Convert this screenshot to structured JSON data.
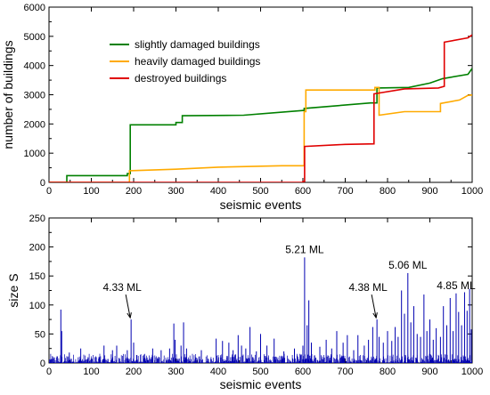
{
  "chart_data": [
    {
      "type": "line",
      "xlabel": "seismic events",
      "ylabel": "number of buildings",
      "xlim": [
        0,
        1000
      ],
      "ylim": [
        0,
        6000
      ],
      "x_ticks": [
        0,
        100,
        200,
        300,
        400,
        500,
        600,
        700,
        800,
        900,
        1000
      ],
      "y_ticks": [
        0,
        1000,
        2000,
        3000,
        4000,
        5000,
        6000
      ],
      "legend_position": "top-left",
      "series": [
        {
          "name": "slightly damaged buildings",
          "color": "#008000",
          "points": [
            [
              0,
              0
            ],
            [
              42,
              0
            ],
            [
              42,
              230
            ],
            [
              185,
              230
            ],
            [
              185,
              300
            ],
            [
              192,
              300
            ],
            [
              192,
              1970
            ],
            [
              300,
              1970
            ],
            [
              300,
              2050
            ],
            [
              315,
              2050
            ],
            [
              315,
              2280
            ],
            [
              460,
              2300
            ],
            [
              600,
              2460
            ],
            [
              603,
              2460
            ],
            [
              603,
              2530
            ],
            [
              760,
              2720
            ],
            [
              775,
              2720
            ],
            [
              775,
              3230
            ],
            [
              850,
              3250
            ],
            [
              900,
              3400
            ],
            [
              930,
              3550
            ],
            [
              990,
              3700
            ],
            [
              1000,
              3900
            ]
          ]
        },
        {
          "name": "heavily damaged buildings",
          "color": "#FFAA00",
          "points": [
            [
              0,
              0
            ],
            [
              190,
              0
            ],
            [
              190,
              400
            ],
            [
              300,
              450
            ],
            [
              400,
              520
            ],
            [
              550,
              570
            ],
            [
              603,
              570
            ],
            [
              603,
              2420
            ],
            [
              607,
              2420
            ],
            [
              607,
              3160
            ],
            [
              770,
              3160
            ],
            [
              770,
              3250
            ],
            [
              780,
              3250
            ],
            [
              780,
              2300
            ],
            [
              840,
              2420
            ],
            [
              925,
              2420
            ],
            [
              925,
              2700
            ],
            [
              970,
              2820
            ],
            [
              990,
              2980
            ],
            [
              1000,
              2990
            ]
          ]
        },
        {
          "name": "destroyed buildings",
          "color": "#E00000",
          "points": [
            [
              0,
              0
            ],
            [
              600,
              0
            ],
            [
              600,
              30
            ],
            [
              604,
              30
            ],
            [
              604,
              1230
            ],
            [
              700,
              1300
            ],
            [
              768,
              1320
            ],
            [
              768,
              3030
            ],
            [
              840,
              3200
            ],
            [
              920,
              3230
            ],
            [
              934,
              3290
            ],
            [
              934,
              4800
            ],
            [
              990,
              4950
            ],
            [
              1000,
              5050
            ]
          ]
        }
      ]
    },
    {
      "type": "bar",
      "xlabel": "seismic events",
      "ylabel": "size S",
      "xlim": [
        0,
        1000
      ],
      "ylim": [
        0,
        250
      ],
      "x_ticks": [
        0,
        100,
        200,
        300,
        400,
        500,
        600,
        700,
        800,
        900,
        1000
      ],
      "y_ticks": [
        0,
        50,
        100,
        150,
        200,
        250
      ],
      "color": "#0000B0",
      "spikes": [
        {
          "x": 28,
          "y": 92
        },
        {
          "x": 30,
          "y": 55
        },
        {
          "x": 48,
          "y": 18
        },
        {
          "x": 75,
          "y": 25
        },
        {
          "x": 130,
          "y": 30
        },
        {
          "x": 150,
          "y": 22
        },
        {
          "x": 160,
          "y": 30
        },
        {
          "x": 185,
          "y": 22
        },
        {
          "x": 194,
          "y": 75
        },
        {
          "x": 200,
          "y": 35
        },
        {
          "x": 245,
          "y": 25
        },
        {
          "x": 265,
          "y": 22
        },
        {
          "x": 285,
          "y": 25
        },
        {
          "x": 295,
          "y": 68
        },
        {
          "x": 298,
          "y": 40
        },
        {
          "x": 312,
          "y": 30
        },
        {
          "x": 318,
          "y": 70
        },
        {
          "x": 325,
          "y": 25
        },
        {
          "x": 360,
          "y": 22
        },
        {
          "x": 395,
          "y": 42
        },
        {
          "x": 410,
          "y": 38
        },
        {
          "x": 425,
          "y": 35
        },
        {
          "x": 435,
          "y": 22
        },
        {
          "x": 447,
          "y": 48
        },
        {
          "x": 455,
          "y": 30
        },
        {
          "x": 465,
          "y": 25
        },
        {
          "x": 475,
          "y": 62
        },
        {
          "x": 490,
          "y": 20
        },
        {
          "x": 500,
          "y": 50
        },
        {
          "x": 515,
          "y": 30
        },
        {
          "x": 532,
          "y": 42
        },
        {
          "x": 555,
          "y": 20
        },
        {
          "x": 580,
          "y": 25
        },
        {
          "x": 600,
          "y": 30
        },
        {
          "x": 604,
          "y": 182
        },
        {
          "x": 610,
          "y": 65
        },
        {
          "x": 614,
          "y": 108
        },
        {
          "x": 620,
          "y": 35
        },
        {
          "x": 640,
          "y": 28
        },
        {
          "x": 655,
          "y": 40
        },
        {
          "x": 668,
          "y": 25
        },
        {
          "x": 680,
          "y": 55
        },
        {
          "x": 695,
          "y": 35
        },
        {
          "x": 705,
          "y": 48
        },
        {
          "x": 720,
          "y": 22
        },
        {
          "x": 730,
          "y": 48
        },
        {
          "x": 745,
          "y": 30
        },
        {
          "x": 755,
          "y": 40
        },
        {
          "x": 765,
          "y": 62
        },
        {
          "x": 775,
          "y": 75
        },
        {
          "x": 780,
          "y": 45
        },
        {
          "x": 790,
          "y": 35
        },
        {
          "x": 800,
          "y": 55
        },
        {
          "x": 810,
          "y": 38
        },
        {
          "x": 818,
          "y": 62
        },
        {
          "x": 825,
          "y": 45
        },
        {
          "x": 833,
          "y": 125
        },
        {
          "x": 840,
          "y": 85
        },
        {
          "x": 848,
          "y": 155
        },
        {
          "x": 855,
          "y": 70
        },
        {
          "x": 862,
          "y": 98
        },
        {
          "x": 870,
          "y": 50
        },
        {
          "x": 878,
          "y": 45
        },
        {
          "x": 886,
          "y": 118
        },
        {
          "x": 893,
          "y": 55
        },
        {
          "x": 900,
          "y": 75
        },
        {
          "x": 908,
          "y": 40
        },
        {
          "x": 915,
          "y": 60
        },
        {
          "x": 925,
          "y": 45
        },
        {
          "x": 932,
          "y": 98
        },
        {
          "x": 940,
          "y": 65
        },
        {
          "x": 948,
          "y": 112
        },
        {
          "x": 955,
          "y": 55
        },
        {
          "x": 962,
          "y": 120
        },
        {
          "x": 968,
          "y": 88
        },
        {
          "x": 975,
          "y": 65
        },
        {
          "x": 982,
          "y": 122
        },
        {
          "x": 988,
          "y": 90
        },
        {
          "x": 994,
          "y": 128
        },
        {
          "x": 998,
          "y": 58
        }
      ],
      "noise_level": 10,
      "annotations": [
        {
          "text": "4.33 ML",
          "x": 194,
          "y": 75,
          "arrow": true
        },
        {
          "text": "5.21 ML",
          "x": 604,
          "y": 182,
          "arrow": false
        },
        {
          "text": "4.38 ML",
          "x": 775,
          "y": 75,
          "arrow": true
        },
        {
          "text": "5.06 ML",
          "x": 848,
          "y": 155,
          "arrow": false
        },
        {
          "text": "4.85 ML",
          "x": 962,
          "y": 120,
          "arrow": false
        }
      ]
    }
  ]
}
